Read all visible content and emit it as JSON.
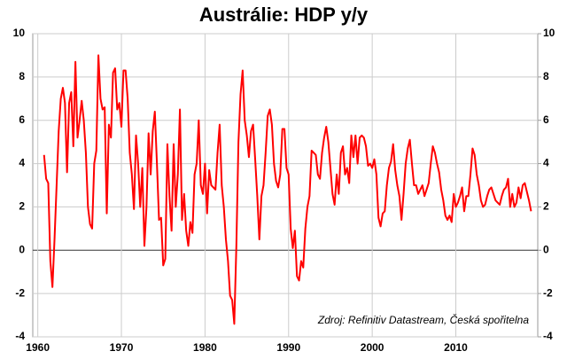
{
  "chart_data": {
    "type": "line",
    "title": "Austrálie: HDP y/y",
    "annotation": "Zdroj: Refinitiv Datastream, Česká spořitelna",
    "xlim": [
      1959.4,
      2019.8
    ],
    "xticks": [
      1960,
      1970,
      1980,
      1990,
      2000,
      2010
    ],
    "ylim": [
      -4,
      10
    ],
    "yticks": [
      -4,
      -2,
      0,
      2,
      4,
      6,
      8,
      10
    ],
    "y2lim": [
      -4,
      10
    ],
    "y2ticks": [
      -4,
      -2,
      0,
      2,
      4,
      6,
      8,
      10
    ],
    "grid": true,
    "x": [
      1960.75,
      1961,
      1961.25,
      1961.5,
      1961.75,
      1962,
      1962.25,
      1962.5,
      1962.75,
      1963,
      1963.25,
      1963.5,
      1963.75,
      1964,
      1964.25,
      1964.5,
      1964.75,
      1965,
      1965.25,
      1965.5,
      1965.75,
      1966,
      1966.25,
      1966.5,
      1966.75,
      1967,
      1967.25,
      1967.5,
      1967.75,
      1968,
      1968.25,
      1968.5,
      1968.75,
      1969,
      1969.25,
      1969.5,
      1969.75,
      1970,
      1970.25,
      1970.5,
      1970.75,
      1971,
      1971.25,
      1971.5,
      1971.75,
      1972,
      1972.25,
      1972.5,
      1972.75,
      1973,
      1973.25,
      1973.5,
      1973.75,
      1974,
      1974.25,
      1974.5,
      1974.75,
      1975,
      1975.25,
      1975.5,
      1975.75,
      1976,
      1976.25,
      1976.5,
      1976.75,
      1977,
      1977.25,
      1977.5,
      1977.75,
      1978,
      1978.25,
      1978.5,
      1978.75,
      1979,
      1979.25,
      1979.5,
      1979.75,
      1980,
      1980.25,
      1980.5,
      1980.75,
      1981,
      1981.25,
      1981.5,
      1981.75,
      1982,
      1982.25,
      1982.5,
      1982.75,
      1983,
      1983.25,
      1983.5,
      1983.75,
      1984,
      1984.25,
      1984.5,
      1984.75,
      1985,
      1985.25,
      1985.5,
      1985.75,
      1986,
      1986.25,
      1986.5,
      1986.75,
      1987,
      1987.25,
      1987.5,
      1987.75,
      1988,
      1988.25,
      1988.5,
      1988.75,
      1989,
      1989.25,
      1989.5,
      1989.75,
      1990,
      1990.25,
      1990.5,
      1990.75,
      1991,
      1991.25,
      1991.5,
      1991.75,
      1992,
      1992.25,
      1992.5,
      1992.75,
      1993,
      1993.25,
      1993.5,
      1993.75,
      1994,
      1994.25,
      1994.5,
      1994.75,
      1995,
      1995.25,
      1995.5,
      1995.75,
      1996,
      1996.25,
      1996.5,
      1996.75,
      1997,
      1997.25,
      1997.5,
      1997.75,
      1998,
      1998.25,
      1998.5,
      1998.75,
      1999,
      1999.25,
      1999.5,
      1999.75,
      2000,
      2000.25,
      2000.5,
      2000.75,
      2001,
      2001.25,
      2001.5,
      2001.75,
      2002,
      2002.25,
      2002.5,
      2002.75,
      2003,
      2003.25,
      2003.5,
      2003.75,
      2004,
      2004.25,
      2004.5,
      2004.75,
      2005,
      2005.25,
      2005.5,
      2005.75,
      2006,
      2006.25,
      2006.5,
      2006.75,
      2007,
      2007.25,
      2007.5,
      2007.75,
      2008,
      2008.25,
      2008.5,
      2008.75,
      2009,
      2009.25,
      2009.5,
      2009.75,
      2010,
      2010.25,
      2010.5,
      2010.75,
      2011,
      2011.25,
      2011.5,
      2011.75,
      2012,
      2012.25,
      2012.5,
      2012.75,
      2013,
      2013.25,
      2013.5,
      2013.75,
      2014,
      2014.25,
      2014.5,
      2014.75,
      2015,
      2015.25,
      2015.5,
      2015.75,
      2016,
      2016.25,
      2016.5,
      2016.75,
      2017,
      2017.25,
      2017.5,
      2017.75,
      2018,
      2018.25,
      2018.5,
      2018.75,
      2019
    ],
    "series": [
      {
        "color": "#ff0000",
        "values": [
          4.4,
          3.3,
          3.1,
          -0.5,
          -1.7,
          0.5,
          3.0,
          5.5,
          7.0,
          7.5,
          6.8,
          3.6,
          6.8,
          7.3,
          4.8,
          8.7,
          5.2,
          6.0,
          6.9,
          6.0,
          4.5,
          2.0,
          1.2,
          1.0,
          4.0,
          4.6,
          9.0,
          7.0,
          6.5,
          6.6,
          1.7,
          5.8,
          5.2,
          8.2,
          8.4,
          6.5,
          6.8,
          5.7,
          8.3,
          8.3,
          7.0,
          4.5,
          3.5,
          1.9,
          5.3,
          4.0,
          2.0,
          3.8,
          0.2,
          2.0,
          5.4,
          3.5,
          5.5,
          6.4,
          4.0,
          1.4,
          1.5,
          -0.7,
          -0.4,
          4.9,
          2.5,
          0.9,
          4.9,
          2.0,
          3.5,
          6.5,
          1.4,
          2.6,
          0.9,
          0.2,
          1.3,
          0.8,
          3.5,
          4.0,
          6.0,
          3.0,
          2.6,
          4.0,
          1.7,
          3.7,
          3.0,
          2.9,
          2.8,
          4.5,
          5.8,
          3.0,
          2.0,
          0.5,
          -0.5,
          -2.1,
          -2.3,
          -3.4,
          0.2,
          5.0,
          7.2,
          8.3,
          6.0,
          5.3,
          4.3,
          5.5,
          5.8,
          4.2,
          2.5,
          0.5,
          2.5,
          3.0,
          4.5,
          6.2,
          6.5,
          5.8,
          4.0,
          3.2,
          2.9,
          3.5,
          5.6,
          5.6,
          3.8,
          3.5,
          1.0,
          0.1,
          0.9,
          -1.2,
          -1.4,
          -0.5,
          -0.8,
          1.0,
          2.0,
          2.5,
          4.6,
          4.5,
          4.4,
          3.5,
          3.3,
          4.5,
          5.2,
          5.7,
          5.0,
          3.8,
          2.6,
          2.1,
          3.5,
          2.6,
          4.5,
          4.8,
          3.5,
          3.8,
          3.1,
          5.3,
          4.3,
          5.3,
          4.0,
          5.2,
          5.3,
          5.2,
          4.8,
          3.9,
          4.0,
          3.8,
          4.2,
          3.5,
          1.5,
          1.1,
          1.7,
          1.8,
          3.0,
          3.8,
          4.1,
          4.9,
          3.7,
          3.0,
          2.5,
          1.4,
          2.6,
          4.0,
          4.7,
          5.1,
          4.0,
          3.0,
          3.0,
          2.6,
          2.8,
          3.0,
          2.5,
          2.8,
          3.1,
          4.0,
          4.8,
          4.5,
          4.0,
          3.6,
          2.8,
          2.3,
          1.6,
          1.4,
          1.6,
          1.3,
          2.6,
          2.0,
          2.2,
          2.5,
          2.9,
          1.8,
          2.5,
          2.5,
          3.5,
          4.7,
          4.4,
          3.5,
          3.0,
          2.3,
          2.0,
          2.1,
          2.5,
          2.8,
          2.9,
          2.6,
          2.3,
          2.2,
          2.1,
          2.5,
          2.8,
          2.9,
          3.3,
          2.0,
          2.6,
          2.0,
          2.2,
          2.9,
          2.4,
          3.0,
          3.1,
          2.7,
          2.3,
          1.8
        ]
      }
    ]
  }
}
